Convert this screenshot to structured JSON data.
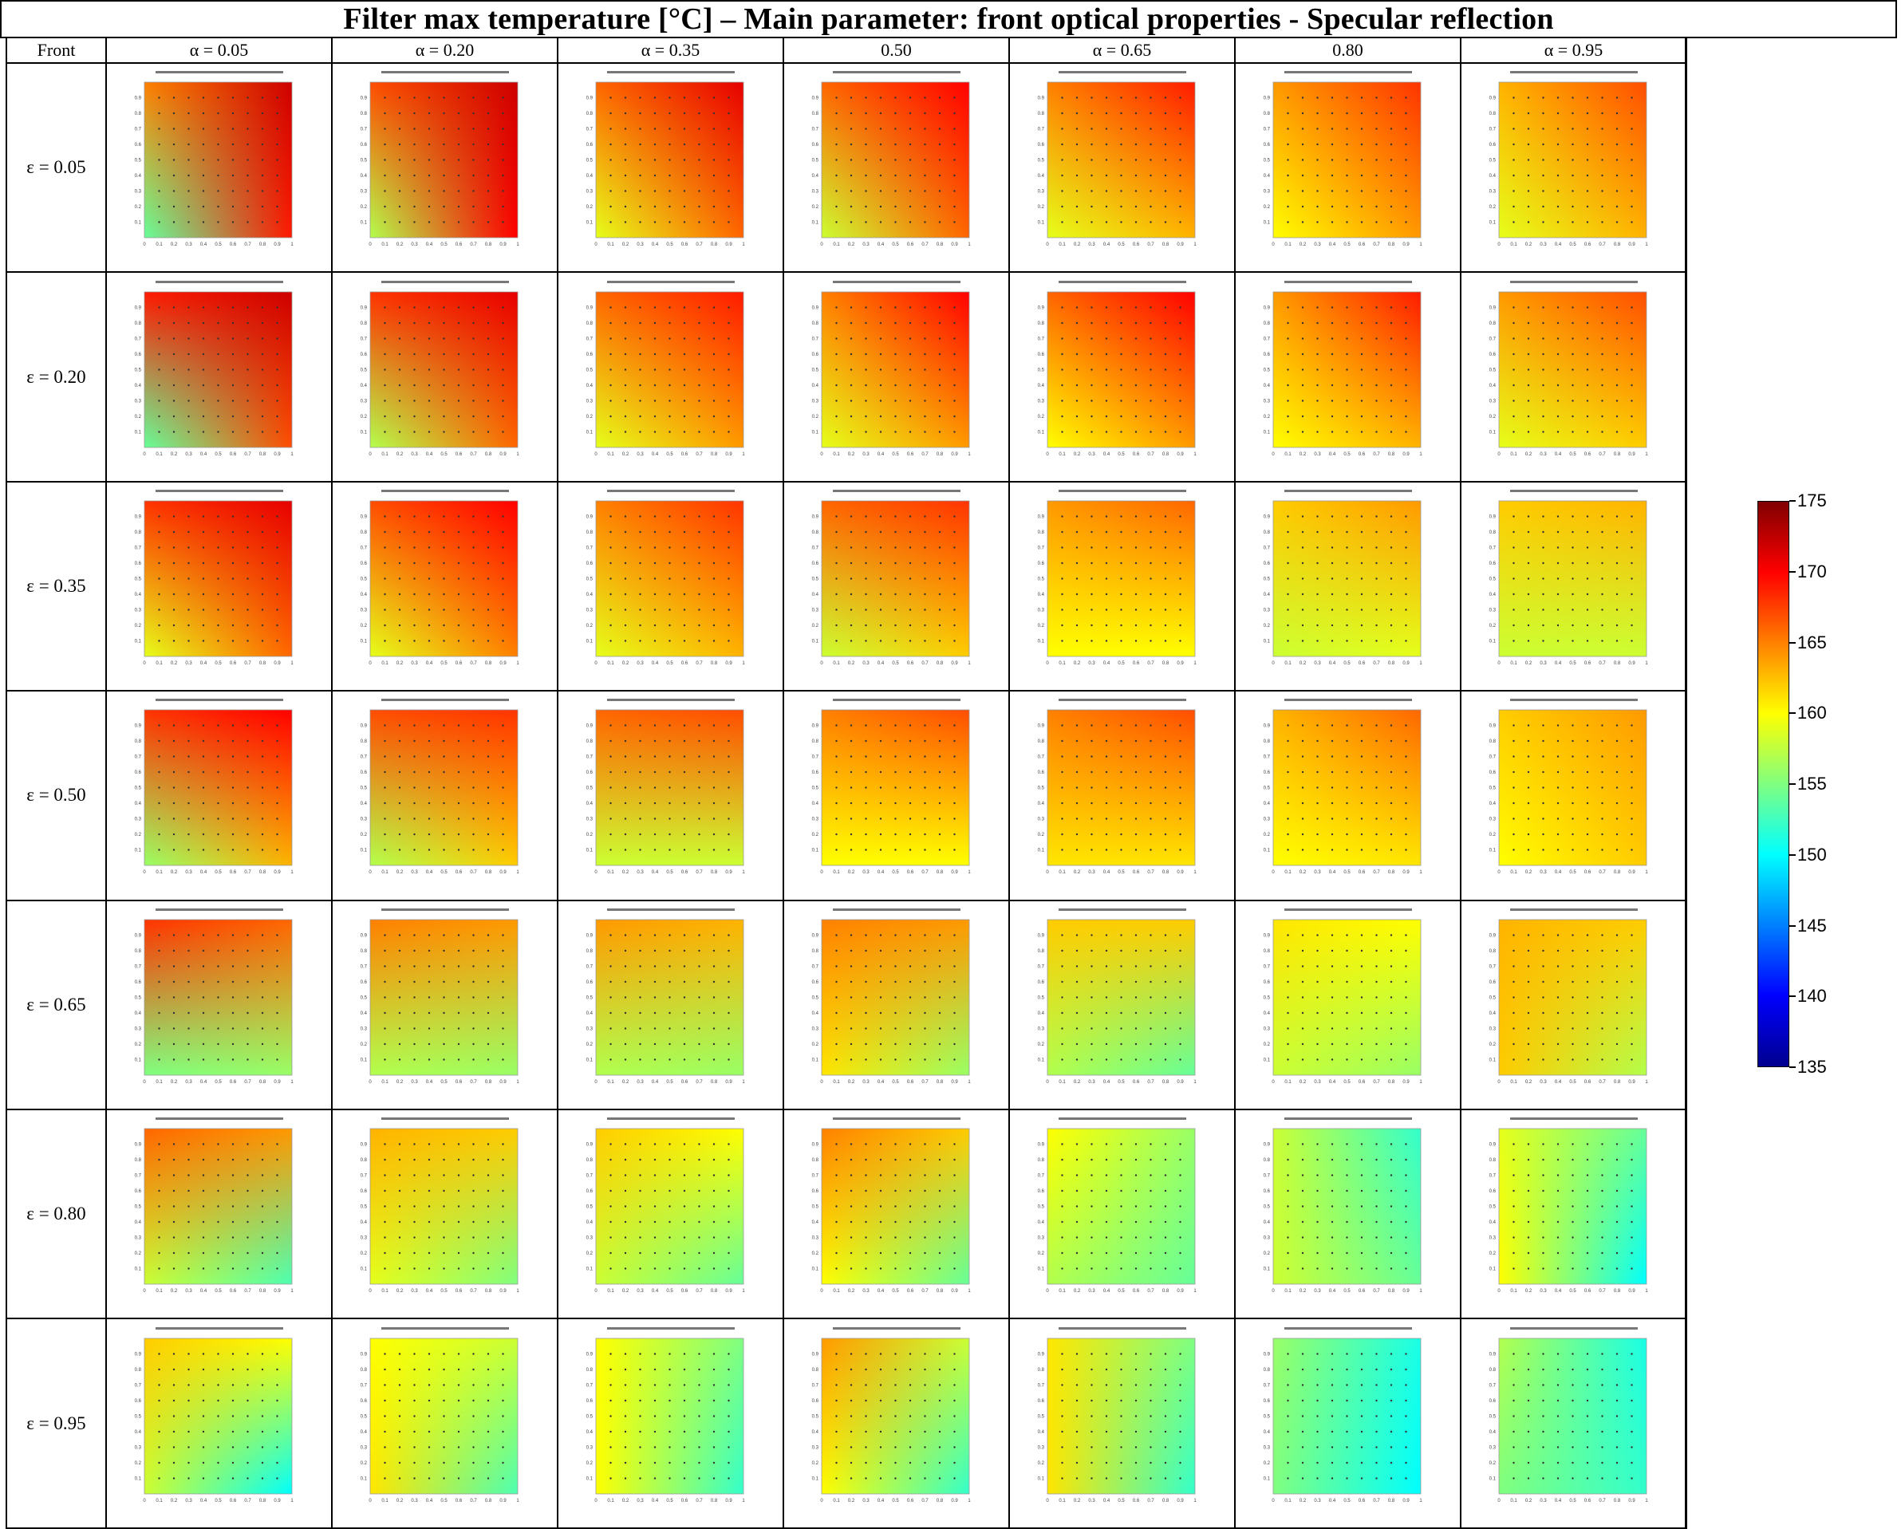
{
  "page": {
    "title": "Filter max temperature [°C] – Main parameter: front optical properties - Specular reflection",
    "corner_label": "Front"
  },
  "chart_data": {
    "type": "heatmap",
    "title": "Filter max temperature [°C] – Main parameter: front optical properties - Specular reflection",
    "row_parameter": "ε (front emissivity)",
    "column_parameter": "α (front absorptivity)",
    "columns": [
      "α = 0.05",
      "α = 0.20",
      "α = 0.35",
      "0.50",
      "α = 0.65",
      "0.80",
      "α = 0.95"
    ],
    "rows": [
      "ε = 0.05",
      "ε = 0.20",
      "ε = 0.35",
      "ε = 0.50",
      "ε = 0.65",
      "ε = 0.80",
      "ε = 0.95"
    ],
    "panel_axes": {
      "x_ticks": [
        "0",
        "0.1",
        "0.2",
        "0.3",
        "0.4",
        "0.5",
        "0.6",
        "0.7",
        "0.8",
        "0.9",
        "1"
      ],
      "y_ticks": [
        "0.1",
        "0.2",
        "0.3",
        "0.4",
        "0.5",
        "0.6",
        "0.7",
        "0.8",
        "0.9"
      ]
    },
    "colorbar": {
      "colormap": "jet",
      "range": [
        135,
        175
      ],
      "ticks": [
        135,
        140,
        145,
        150,
        155,
        160,
        165,
        170,
        175
      ]
    },
    "panels_estimated_temperature": {
      "description": "approximate field: top-left, top-right, bottom-left, bottom-right per panel [°C]",
      "values": [
        [
          [
            165,
            172,
            154,
            169
          ],
          [
            167,
            172,
            157,
            170
          ],
          [
            166,
            171,
            159,
            166
          ],
          [
            166,
            170,
            158,
            166
          ],
          [
            165,
            169,
            159,
            163
          ],
          [
            164,
            168,
            160,
            164
          ],
          [
            163,
            167,
            159,
            163
          ]
        ],
        [
          [
            169,
            172,
            154,
            167
          ],
          [
            168,
            171,
            157,
            166
          ],
          [
            166,
            169,
            159,
            164
          ],
          [
            165,
            170,
            159,
            164
          ],
          [
            166,
            170,
            160,
            164
          ],
          [
            164,
            169,
            160,
            163
          ],
          [
            164,
            167,
            159,
            162
          ]
        ],
        [
          [
            168,
            171,
            159,
            166
          ],
          [
            167,
            170,
            159,
            165
          ],
          [
            165,
            168,
            159,
            163
          ],
          [
            166,
            168,
            158,
            162
          ],
          [
            164,
            166,
            160,
            160
          ],
          [
            162,
            164,
            158,
            159
          ],
          [
            162,
            163,
            158,
            158
          ]
        ],
        [
          [
            168,
            170,
            156,
            163
          ],
          [
            167,
            168,
            157,
            162
          ],
          [
            166,
            167,
            158,
            158
          ],
          [
            165,
            167,
            160,
            160
          ],
          [
            165,
            167,
            161,
            161
          ],
          [
            163,
            166,
            160,
            161
          ],
          [
            162,
            164,
            160,
            162
          ]
        ],
        [
          [
            168,
            166,
            155,
            156
          ],
          [
            165,
            164,
            157,
            156
          ],
          [
            164,
            163,
            157,
            156
          ],
          [
            165,
            164,
            161,
            156
          ],
          [
            162,
            162,
            157,
            154
          ],
          [
            161,
            160,
            158,
            156
          ],
          [
            163,
            162,
            162,
            157
          ]
        ],
        [
          [
            166,
            164,
            158,
            153
          ],
          [
            163,
            162,
            159,
            155
          ],
          [
            162,
            160,
            158,
            154
          ],
          [
            165,
            162,
            160,
            154
          ],
          [
            160,
            156,
            157,
            154
          ],
          [
            158,
            152,
            158,
            154
          ],
          [
            159,
            154,
            160,
            150
          ]
        ],
        [
          [
            162,
            160,
            158,
            150
          ],
          [
            160,
            158,
            161,
            153
          ],
          [
            160,
            155,
            160,
            152
          ],
          [
            164,
            158,
            160,
            152
          ],
          [
            161,
            155,
            161,
            152
          ],
          [
            156,
            151,
            155,
            150
          ],
          [
            157,
            151,
            155,
            152
          ]
        ]
      ]
    }
  }
}
